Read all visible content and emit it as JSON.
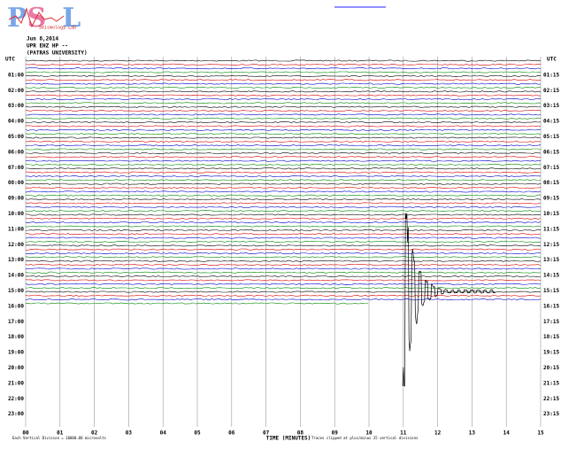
{
  "logo": {
    "letters": [
      "P",
      "S",
      "L"
    ],
    "caption": "Seismology Lab"
  },
  "header": {
    "date": "Jun 8,2014",
    "station": "UPR EHZ HP --",
    "institution": "(PATRAS UNIVERSITY)"
  },
  "plot": {
    "left_unit": "UTC",
    "right_unit": "UTC",
    "left_labels": [
      "01:00",
      "02:00",
      "03:00",
      "04:00",
      "05:00",
      "06:00",
      "07:00",
      "08:00",
      "09:00",
      "10:00",
      "11:00",
      "12:00",
      "13:00",
      "14:00",
      "15:00",
      "16:00",
      "17:00",
      "18:00",
      "19:00",
      "20:00",
      "21:00",
      "22:00",
      "23:00"
    ],
    "right_labels": [
      "01:15",
      "02:15",
      "03:15",
      "04:15",
      "05:15",
      "06:15",
      "07:15",
      "08:15",
      "09:15",
      "10:15",
      "11:15",
      "12:15",
      "13:15",
      "14:15",
      "15:15",
      "16:15",
      "17:15",
      "18:15",
      "19:15",
      "20:15",
      "21:15",
      "22:15",
      "23:15"
    ],
    "x_labels": [
      "00",
      "01",
      "02",
      "03",
      "04",
      "05",
      "06",
      "07",
      "08",
      "09",
      "10",
      "11",
      "12",
      "13",
      "14",
      "15"
    ],
    "x_title": "TIME (MINUTES)"
  },
  "footer": {
    "scale_note": "Each Vertical Division = 10000.00 microvolts",
    "clip_note": "Traces clipped at plus/minus 25 vertical divisions"
  }
}
